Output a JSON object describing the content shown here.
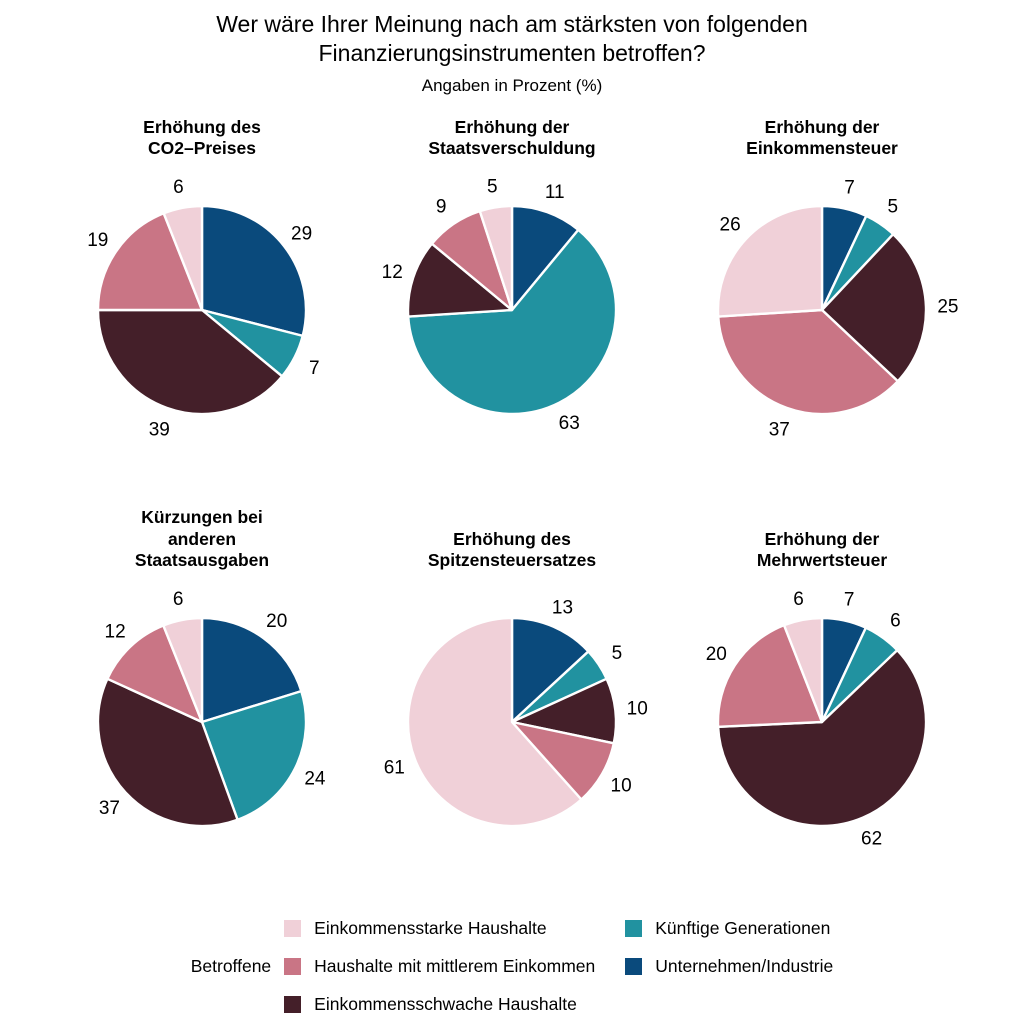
{
  "title": {
    "line1": "Wer wäre Ihrer Meinung nach am stärksten von folgenden",
    "line2": "Finanzierungsinstrumenten betroffen?"
  },
  "subtitle": "Angaben in Prozent (%)",
  "palette": {
    "Einkommensstarke Haushalte": "#f0d0d8",
    "Haushalte mit mittlerem Einkommen": "#c97585",
    "Einkommensschwache Haushalte": "#441f29",
    "Künftige Generationen": "#2192a0",
    "Unternehmen/Industrie": "#0a4a7c"
  },
  "legend": {
    "title": "Betroffene",
    "columns": [
      [
        {
          "label": "Einkommensstarke Haushalte",
          "color": "#f0d0d8"
        },
        {
          "label": "Haushalte mit mittlerem Einkommen",
          "color": "#c97585"
        },
        {
          "label": "Einkommensschwache Haushalte",
          "color": "#441f29"
        }
      ],
      [
        {
          "label": "Künftige Generationen",
          "color": "#2192a0"
        },
        {
          "label": "Unternehmen/Industrie",
          "color": "#0a4a7c"
        }
      ]
    ]
  },
  "chart_data": [
    {
      "type": "pie",
      "title_lines": [
        "Erhöhung des",
        "CO2–Preises"
      ],
      "start_angle_deg": 0,
      "direction": "clockwise",
      "labels": "outside",
      "slices": [
        {
          "label": "Unternehmen/Industrie",
          "value": 29
        },
        {
          "label": "Künftige Generationen",
          "value": 7
        },
        {
          "label": "Einkommensschwache Haushalte",
          "value": 39
        },
        {
          "label": "Haushalte mit mittlerem Einkommen",
          "value": 19
        },
        {
          "label": "Einkommensstarke Haushalte",
          "value": 6
        }
      ]
    },
    {
      "type": "pie",
      "title_lines": [
        "Erhöhung der",
        "Staatsverschuldung"
      ],
      "start_angle_deg": 0,
      "direction": "clockwise",
      "labels": "outside",
      "slices": [
        {
          "label": "Unternehmen/Industrie",
          "value": 11
        },
        {
          "label": "Künftige Generationen",
          "value": 63
        },
        {
          "label": "Einkommensschwache Haushalte",
          "value": 12
        },
        {
          "label": "Haushalte mit mittlerem Einkommen",
          "value": 9
        },
        {
          "label": "Einkommensstarke Haushalte",
          "value": 5
        }
      ]
    },
    {
      "type": "pie",
      "title_lines": [
        "Erhöhung der",
        "Einkommensteuer"
      ],
      "start_angle_deg": 0,
      "direction": "clockwise",
      "labels": "outside",
      "slices": [
        {
          "label": "Unternehmen/Industrie",
          "value": 7
        },
        {
          "label": "Künftige Generationen",
          "value": 5
        },
        {
          "label": "Einkommensschwache Haushalte",
          "value": 25
        },
        {
          "label": "Haushalte mit mittlerem Einkommen",
          "value": 37
        },
        {
          "label": "Einkommensstarke Haushalte",
          "value": 26
        }
      ]
    },
    {
      "type": "pie",
      "title_lines": [
        "Kürzungen bei",
        "anderen",
        "Staatsausgaben"
      ],
      "start_angle_deg": 0,
      "direction": "clockwise",
      "labels": "outside",
      "slices": [
        {
          "label": "Unternehmen/Industrie",
          "value": 20
        },
        {
          "label": "Künftige Generationen",
          "value": 24
        },
        {
          "label": "Einkommensschwache Haushalte",
          "value": 37
        },
        {
          "label": "Haushalte mit mittlerem Einkommen",
          "value": 12
        },
        {
          "label": "Einkommensstarke Haushalte",
          "value": 6
        }
      ]
    },
    {
      "type": "pie",
      "title_lines": [
        "Erhöhung des",
        "Spitzensteuersatzes"
      ],
      "start_angle_deg": 0,
      "direction": "clockwise",
      "labels": "outside",
      "slices": [
        {
          "label": "Unternehmen/Industrie",
          "value": 13
        },
        {
          "label": "Künftige Generationen",
          "value": 5
        },
        {
          "label": "Einkommensschwache Haushalte",
          "value": 10
        },
        {
          "label": "Haushalte mit mittlerem Einkommen",
          "value": 10
        },
        {
          "label": "Einkommensstarke Haushalte",
          "value": 61
        }
      ]
    },
    {
      "type": "pie",
      "title_lines": [
        "Erhöhung der",
        "Mehrwertsteuer"
      ],
      "start_angle_deg": 0,
      "direction": "clockwise",
      "labels": "outside",
      "slices": [
        {
          "label": "Unternehmen/Industrie",
          "value": 7
        },
        {
          "label": "Künftige Generationen",
          "value": 6
        },
        {
          "label": "Einkommensschwache Haushalte",
          "value": 62
        },
        {
          "label": "Haushalte mit mittlerem Einkommen",
          "value": 20
        },
        {
          "label": "Einkommensstarke Haushalte",
          "value": 6
        }
      ]
    }
  ]
}
